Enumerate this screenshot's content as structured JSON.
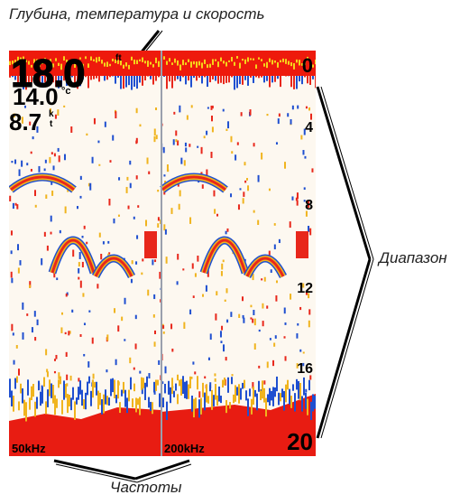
{
  "captions": {
    "top": "Глубина, температура и скорость",
    "right": "Диапазон",
    "bottom": "Частоты"
  },
  "readings": {
    "depth": "18.0",
    "depth_unit": "ft",
    "temperature": "14.0",
    "temperature_unit": "°c",
    "speed": "8.7",
    "speed_unit_top": "k",
    "speed_unit_bottom": "t"
  },
  "scale": {
    "top": "0",
    "marks": [
      "4",
      "8",
      "12",
      "16"
    ],
    "bottom": "20"
  },
  "frequencies": {
    "left": "50kHz",
    "right": "200kHz"
  },
  "colors": {
    "background": "#fdf8f0",
    "surface": "#ee1a0c",
    "surface_highlight": "#f6d31a",
    "arch_warm": "#e8271b",
    "arch_mid": "#f0b41e",
    "arch_cool": "#1f4fd0",
    "bottom": "#e81c12",
    "divider": "#9aa0ad"
  }
}
